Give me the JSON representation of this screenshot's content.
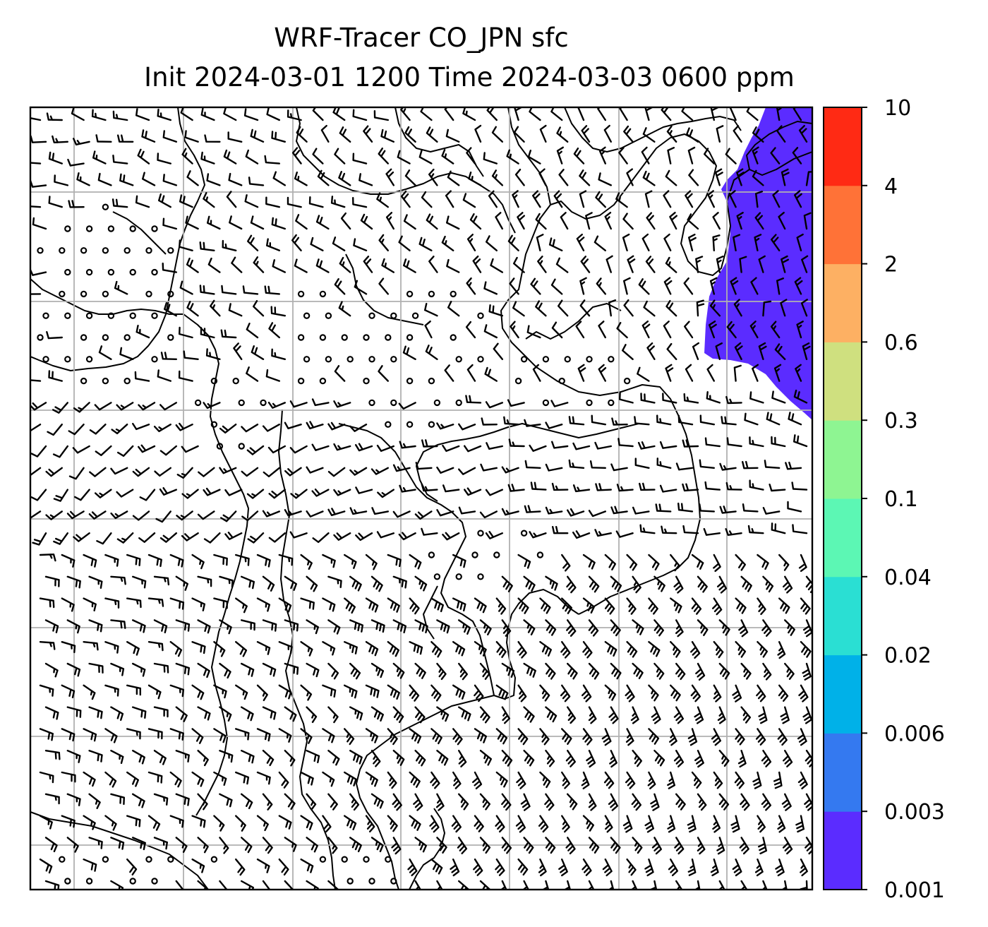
{
  "title": {
    "line1": "WRF-Tracer CO_JPN sfc",
    "line2": "Init 2024-03-01 1200 Time 2024-03-03 0600 ppm"
  },
  "colorbar": {
    "levels": [
      "0.001",
      "0.003",
      "0.006",
      "0.02",
      "0.04",
      "0.1",
      "0.3",
      "0.6",
      "2",
      "4",
      "10"
    ],
    "colors": [
      "#5b2cff",
      "#3479f0",
      "#00b1e8",
      "#2adfd3",
      "#5cf7b4",
      "#8ef592",
      "#cfe07f",
      "#fdb063",
      "#ff7237",
      "#ff2a14"
    ]
  },
  "map": {
    "plume_color": "#5b2cff",
    "barb_color": "#000000",
    "coastline_color": "#000000",
    "grid_color": "#b0b0b0",
    "gridlines": true,
    "field": "CO tracer concentration with surface wind barbs"
  }
}
